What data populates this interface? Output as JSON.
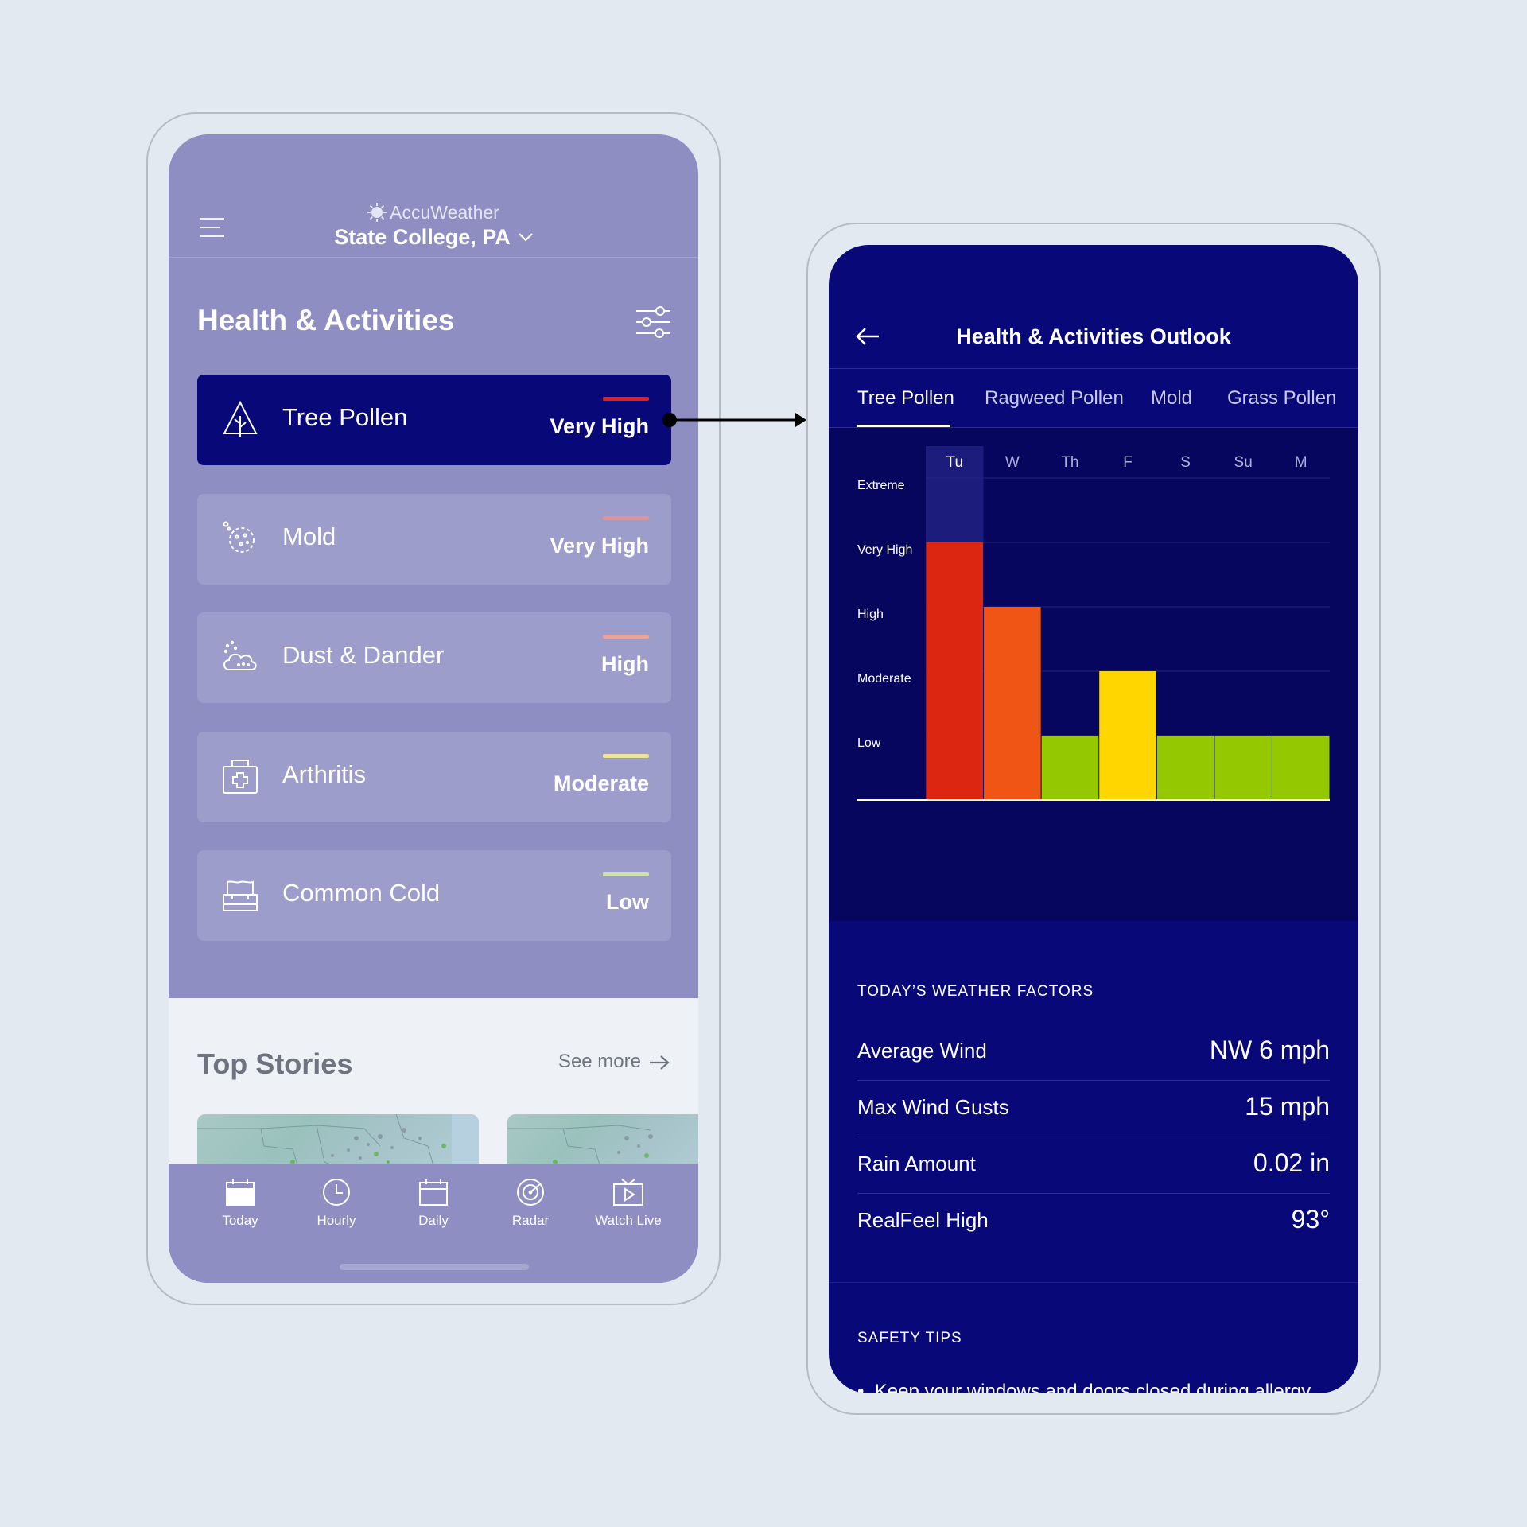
{
  "left_screen": {
    "brand": "AccuWeather",
    "location": "State College, PA",
    "section_title": "Health & Activities",
    "cards": [
      {
        "name": "Tree Pollen",
        "level": "Very High",
        "color": "#e02020",
        "icon": "tree-icon",
        "active": true
      },
      {
        "name": "Mold",
        "level": "Very High",
        "color": "#e8928f",
        "icon": "mold-icon",
        "active": false
      },
      {
        "name": "Dust & Dander",
        "level": "High",
        "color": "#e9a39a",
        "icon": "dust-icon",
        "active": false
      },
      {
        "name": "Arthritis",
        "level": "Moderate",
        "color": "#ebe39e",
        "icon": "first-aid-icon",
        "active": false
      },
      {
        "name": "Common Cold",
        "level": "Low",
        "color": "#cde4a3",
        "icon": "tissue-box-icon",
        "active": false
      }
    ],
    "top_stories": {
      "title": "Top Stories",
      "see_more": "See more"
    },
    "tabs": [
      {
        "label": "Today",
        "icon": "calendar-today-icon"
      },
      {
        "label": "Hourly",
        "icon": "clock-icon"
      },
      {
        "label": "Daily",
        "icon": "calendar-icon"
      },
      {
        "label": "Radar",
        "icon": "radar-icon"
      },
      {
        "label": "Watch Live",
        "icon": "play-video-icon"
      }
    ]
  },
  "right_screen": {
    "title": "Health & Activities Outlook",
    "tabs": [
      "Tree Pollen",
      "Ragweed Pollen",
      "Mold",
      "Grass Pollen"
    ],
    "active_tab": "Tree Pollen",
    "factors_title": "TODAY’S WEATHER FACTORS",
    "factors": [
      {
        "label": "Average Wind",
        "value": "NW 6 mph"
      },
      {
        "label": "Max Wind Gusts",
        "value": "15 mph"
      },
      {
        "label": "Rain Amount",
        "value": "0.02 in"
      },
      {
        "label": "RealFeel High",
        "value": "93°"
      }
    ],
    "safety_title": "SAFETY TIPS",
    "safety_tip": "Keep your windows and doors closed during allergy"
  },
  "chart_data": {
    "type": "bar",
    "categories": [
      "Tu",
      "W",
      "Th",
      "F",
      "S",
      "Su",
      "M"
    ],
    "levels": [
      "Low",
      "Moderate",
      "High",
      "Very High",
      "Extreme"
    ],
    "values": [
      4,
      3,
      1,
      2,
      1,
      1,
      1
    ],
    "colors": [
      "#dc2612",
      "#f05516",
      "#94c800",
      "#ffd600",
      "#94c800",
      "#94c800",
      "#94c800"
    ],
    "highlighted": "Tu",
    "ylim": [
      0,
      5
    ]
  }
}
